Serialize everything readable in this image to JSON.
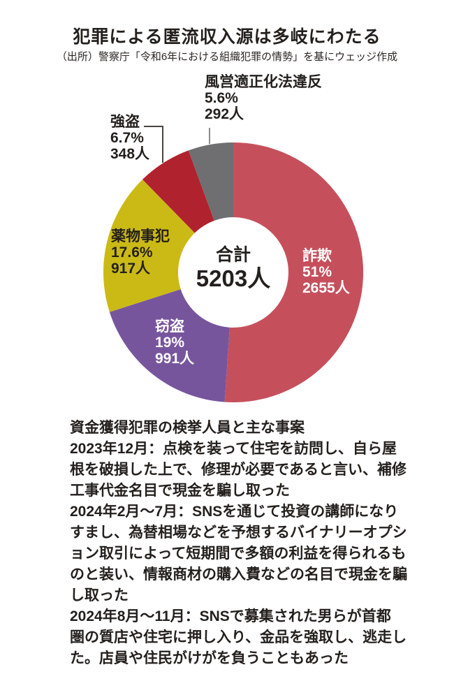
{
  "title": "犯罪による匿流収入源は多岐にわたる",
  "source": "（出所）警察庁「令和6年における組織犯罪の情勢」を基にウェッジ作成",
  "chart_data": {
    "type": "pie",
    "donut": true,
    "title": "犯罪による匿流収入源は多岐にわたる",
    "start_angle_deg": -90,
    "direction": "clockwise",
    "legend_position": "labels-on-and-around-slices",
    "center": {
      "label": "合計",
      "value": "5203人"
    },
    "total_count": 5203,
    "segments": [
      {
        "label": "詐欺",
        "percent": 51,
        "percent_label": "51%",
        "count": 2655,
        "count_label": "2655人",
        "color": "#c5505c",
        "label_color": "#ffffff"
      },
      {
        "label": "窃盗",
        "percent": 19,
        "percent_label": "19%",
        "count": 991,
        "count_label": "991人",
        "color": "#77559d",
        "label_color": "#ffffff"
      },
      {
        "label": "薬物事犯",
        "percent": 17.6,
        "percent_label": "17.6%",
        "count": 917,
        "count_label": "917人",
        "color": "#cbba16",
        "label_color": "#231f1c"
      },
      {
        "label": "強盗",
        "percent": 6.7,
        "percent_label": "6.7%",
        "count": 348,
        "count_label": "348人",
        "color": "#b0232e",
        "label_color": "#231f1c"
      },
      {
        "label": "風営適正化法違反",
        "percent": 5.6,
        "percent_label": "5.6%",
        "count": 292,
        "count_label": "292人",
        "color": "#6f6f72",
        "label_color": "#231f1c"
      }
    ]
  },
  "notes": {
    "heading": "資金獲得犯罪の検挙人員と主な事案",
    "paragraphs": [
      "2023年12月：点検を装って住宅を訪問し、自ら屋\n根を破損した上で、修理が必要であると言い、補修\n工事代金名目で現金を騙し取った",
      "2024年2月〜7月：SNSを通じて投資の講師になり\nすまし、為替相場などを予想するバイナリーオプシ\nョン取引によって短期間で多額の利益を得られるも\nのと装い、情報商材の購入費などの名目で現金を騙\nし取った",
      "2024年8月〜11月：SNSで募集された男らが首都\n圏の質店や住宅に押し入り、金品を強取し、逃走し\nた。店員や住民がけがを負うこともあった"
    ]
  }
}
